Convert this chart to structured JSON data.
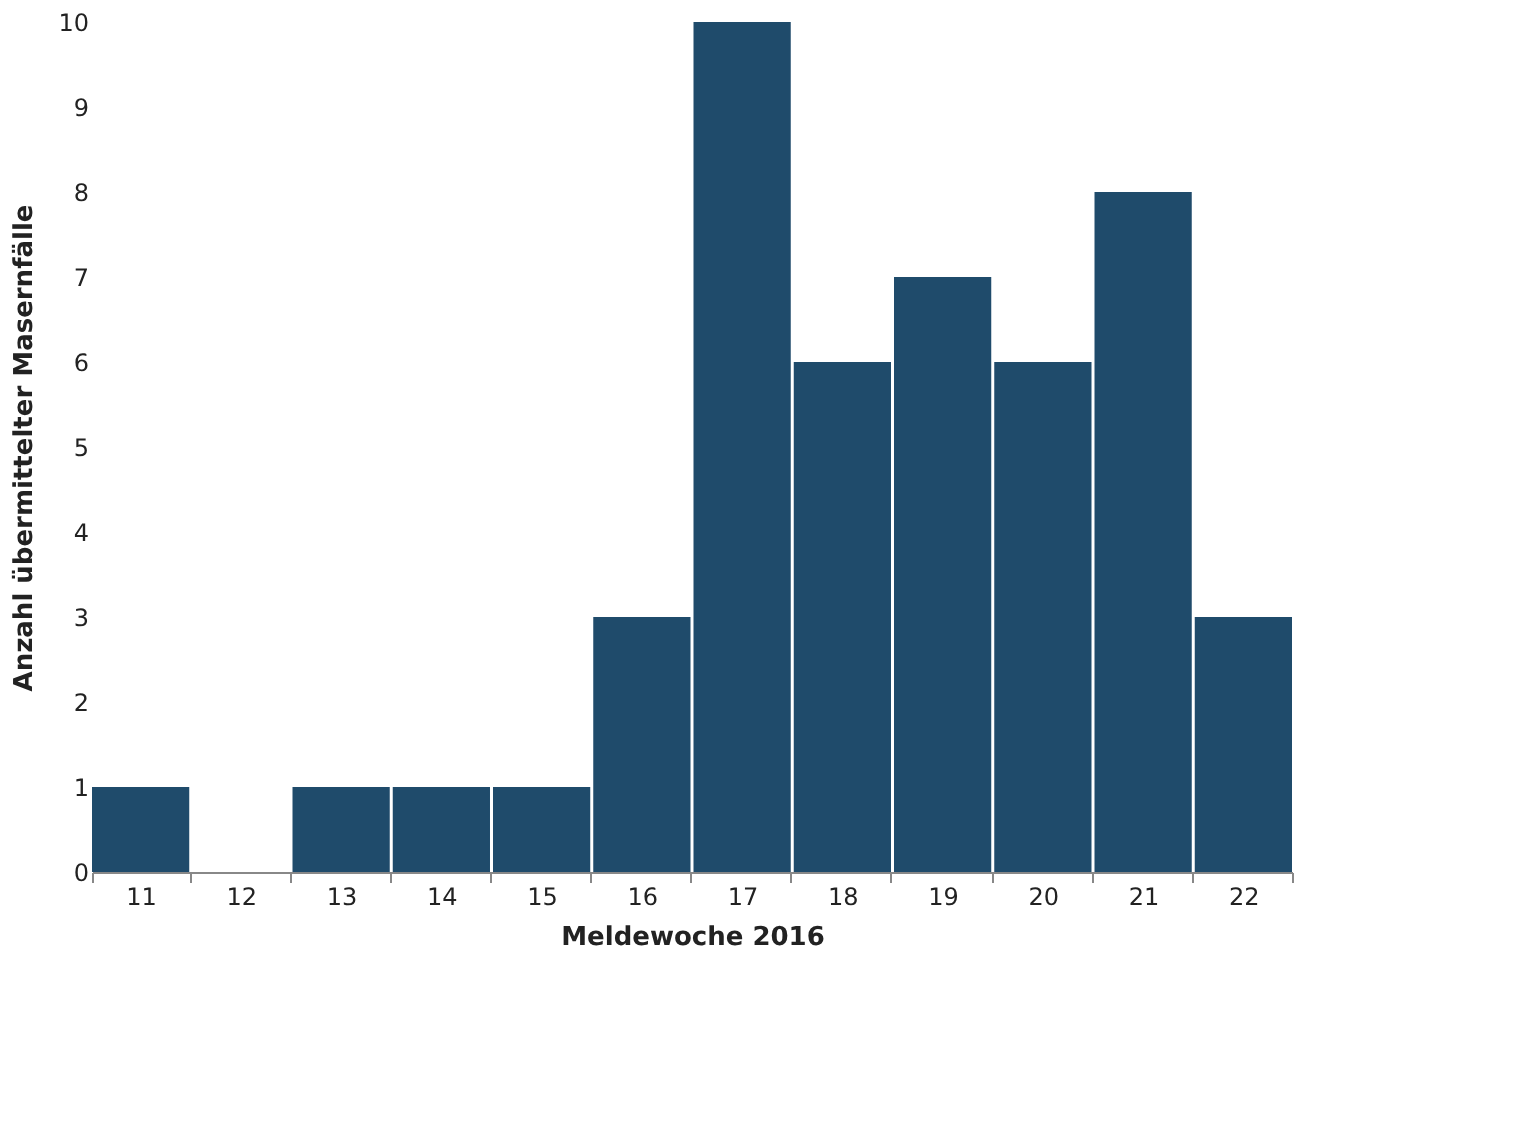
{
  "chart_data": {
    "type": "bar",
    "xlabel": "Meldewoche 2016",
    "ylabel": "Anzahl übermittelter Masernfälle",
    "categories": [
      "11",
      "12",
      "13",
      "14",
      "15",
      "16",
      "17",
      "18",
      "19",
      "20",
      "21",
      "22"
    ],
    "values": [
      1,
      0,
      1,
      1,
      1,
      3,
      10,
      6,
      7,
      6,
      8,
      3
    ],
    "color": "#1f4b6b",
    "ylim": [
      0,
      10
    ],
    "yticks": [
      0,
      1,
      2,
      3,
      4,
      5,
      6,
      7,
      8,
      9,
      10
    ],
    "grid": false
  }
}
